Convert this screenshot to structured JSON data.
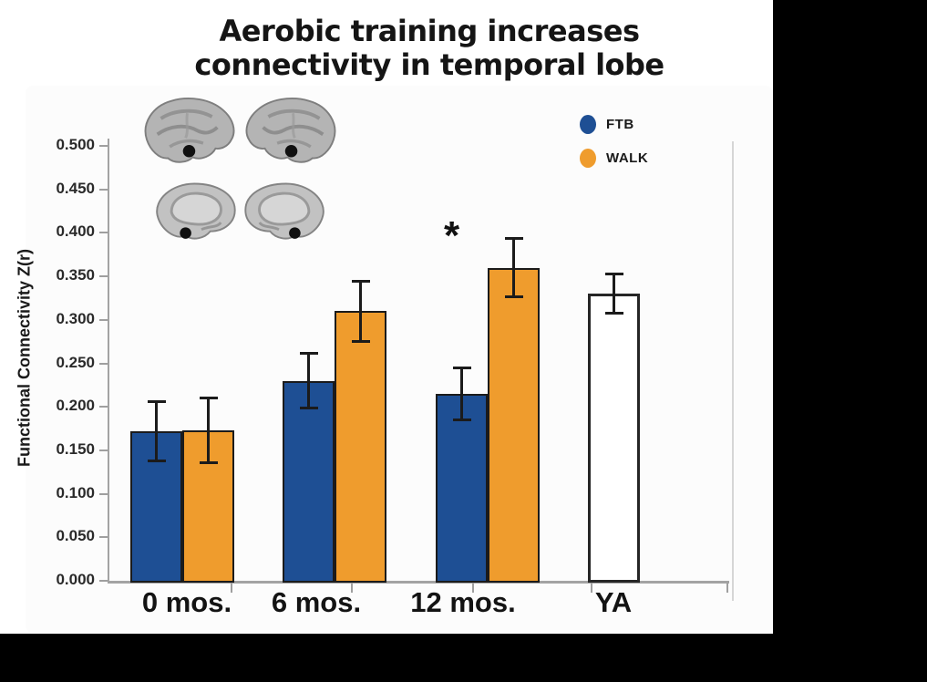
{
  "title": {
    "line1": "Aerobic training increases",
    "line2": "connectivity in temporal lobe"
  },
  "y_axis": {
    "label": "Functional Connectivity Z(r)",
    "tick_labels": [
      "0.500",
      "0.450",
      "0.400",
      "0.350",
      "0.300",
      "0.250",
      "0.200",
      "0.150",
      "0.100",
      "0.050",
      "0.000"
    ]
  },
  "x_axis": {
    "categories": [
      "0 mos.",
      "6 mos.",
      "12 mos.",
      "YA"
    ]
  },
  "legend": {
    "items": [
      {
        "label": "FTB",
        "color": "#1e4f94"
      },
      {
        "label": "WALK",
        "color": "#ef9c2d"
      }
    ]
  },
  "annotations": {
    "significance_marker": "*",
    "significance_location": "above WALK bar at 12 mos."
  },
  "colors": {
    "ftb_blue": "#1e4f94",
    "walk_orange": "#ef9c2d",
    "ya_white": "#ffffff",
    "bar_outline": "#1b1b1b",
    "axis_gray": "#a3a3a3"
  },
  "chart_data": {
    "type": "bar",
    "title": "Aerobic training increases connectivity in temporal lobe",
    "xlabel": "",
    "ylabel": "Functional Connectivity Z(r)",
    "categories": [
      "0 mos.",
      "6 mos.",
      "12 mos.",
      "YA"
    ],
    "series": [
      {
        "name": "FTB",
        "color": "#1e4f94",
        "values": [
          0.172,
          0.23,
          0.215,
          null
        ],
        "errors": [
          0.035,
          0.032,
          0.03,
          null
        ]
      },
      {
        "name": "WALK",
        "color": "#ef9c2d",
        "values": [
          0.173,
          0.31,
          0.36,
          null
        ],
        "errors": [
          0.038,
          0.035,
          0.034,
          null
        ]
      },
      {
        "name": "YA",
        "color": "#ffffff",
        "values": [
          null,
          null,
          null,
          0.33
        ],
        "errors": [
          null,
          null,
          null,
          0.023
        ]
      }
    ],
    "ylim": [
      0.0,
      0.5
    ],
    "ytick_step": 0.05,
    "grid": false,
    "legend_position": "upper right",
    "error_bars": true,
    "annotation": {
      "text": "*",
      "category": "12 mos.",
      "series": "WALK"
    },
    "inset": "four brain silhouettes (lateral and medial views) with black seed-region dots in temporal lobe"
  }
}
